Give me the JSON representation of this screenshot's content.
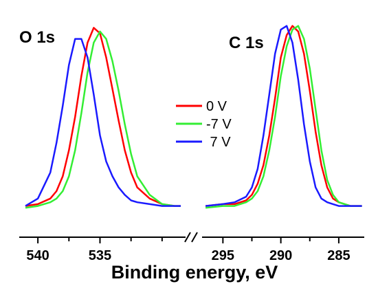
{
  "chart_data": {
    "type": "line",
    "xlabel": "Binding energy, eV",
    "axis_direction": "reversed",
    "axis_break": true,
    "panels": [
      {
        "label": "O 1s",
        "xlim": [
          541.5,
          528
        ],
        "ticks": [
          540,
          535
        ],
        "series": [
          {
            "name": "0 V",
            "color": "#ff0000",
            "x": [
              541.0,
              540.0,
              539.0,
              538.5,
              538.0,
              537.5,
              537.0,
              536.5,
              536.0,
              535.5,
              535.0,
              534.5,
              534.0,
              533.5,
              533.0,
              532.5,
              532.0,
              531.0,
              530.0,
              529.0,
              528.5
            ],
            "y": [
              0.02,
              0.03,
              0.06,
              0.1,
              0.18,
              0.32,
              0.5,
              0.72,
              0.9,
              0.98,
              0.95,
              0.82,
              0.65,
              0.48,
              0.32,
              0.2,
              0.12,
              0.06,
              0.03,
              0.02,
              0.02
            ]
          },
          {
            "name": "-7 V",
            "color": "#33ee33",
            "x": [
              541.0,
              540.0,
              539.0,
              538.5,
              538.0,
              537.5,
              537.0,
              536.5,
              536.0,
              535.5,
              535.0,
              534.5,
              534.0,
              533.5,
              533.0,
              532.5,
              532.0,
              531.0,
              530.0,
              529.0,
              528.5
            ],
            "y": [
              0.01,
              0.02,
              0.04,
              0.06,
              0.1,
              0.18,
              0.32,
              0.52,
              0.74,
              0.9,
              0.96,
              0.92,
              0.8,
              0.64,
              0.46,
              0.3,
              0.18,
              0.08,
              0.03,
              0.02,
              0.02
            ]
          },
          {
            "name": " 7 V",
            "color": "#1a1aff",
            "x": [
              541.0,
              540.0,
              539.0,
              538.5,
              538.0,
              537.5,
              537.0,
              536.5,
              536.0,
              535.5,
              535.0,
              534.5,
              534.0,
              533.5,
              533.0,
              532.5,
              532.0,
              531.0,
              530.0,
              529.0,
              528.5
            ],
            "y": [
              0.02,
              0.06,
              0.2,
              0.36,
              0.56,
              0.78,
              0.92,
              0.92,
              0.82,
              0.62,
              0.4,
              0.26,
              0.18,
              0.12,
              0.08,
              0.05,
              0.04,
              0.03,
              0.02,
              0.02,
              0.02
            ]
          }
        ]
      },
      {
        "label": "C 1s",
        "xlim": [
          296.8,
          282.8
        ],
        "ticks": [
          295,
          290,
          285
        ],
        "series": [
          {
            "name": "0 V",
            "color": "#ff0000",
            "x": [
              296.5,
              295.0,
              294.0,
              293.0,
              292.5,
              292.0,
              291.5,
              291.0,
              290.5,
              290.0,
              289.5,
              289.0,
              288.5,
              288.0,
              287.5,
              287.0,
              286.5,
              286.0,
              285.5,
              285.0,
              284.0,
              283.0
            ],
            "y": [
              0.02,
              0.03,
              0.03,
              0.05,
              0.08,
              0.14,
              0.24,
              0.4,
              0.6,
              0.82,
              0.94,
              0.99,
              0.96,
              0.84,
              0.64,
              0.42,
              0.24,
              0.12,
              0.06,
              0.04,
              0.02,
              0.02
            ]
          },
          {
            "name": "-7 V",
            "color": "#33ee33",
            "x": [
              296.5,
              295.0,
              294.0,
              293.0,
              292.5,
              292.0,
              291.5,
              291.0,
              290.5,
              290.0,
              289.5,
              289.0,
              288.5,
              288.0,
              287.5,
              287.0,
              286.5,
              286.0,
              285.5,
              285.0,
              284.0,
              283.0
            ],
            "y": [
              0.01,
              0.02,
              0.02,
              0.04,
              0.06,
              0.1,
              0.18,
              0.32,
              0.5,
              0.72,
              0.88,
              0.97,
              0.99,
              0.92,
              0.76,
              0.54,
              0.32,
              0.16,
              0.08,
              0.04,
              0.02,
              0.02
            ]
          },
          {
            "name": " 7 V",
            "color": "#1a1aff",
            "x": [
              296.5,
              295.0,
              294.0,
              293.0,
              292.5,
              292.0,
              291.5,
              291.0,
              290.5,
              290.0,
              289.5,
              289.0,
              288.5,
              288.0,
              287.5,
              287.0,
              286.5,
              286.0,
              285.5,
              285.0,
              284.0,
              283.0
            ],
            "y": [
              0.02,
              0.03,
              0.04,
              0.07,
              0.12,
              0.22,
              0.4,
              0.62,
              0.84,
              0.97,
              0.99,
              0.9,
              0.7,
              0.46,
              0.26,
              0.12,
              0.06,
              0.04,
              0.03,
              0.02,
              0.02,
              0.02
            ]
          }
        ]
      }
    ],
    "legend": {
      "placement": "center",
      "entries": [
        "0 V",
        "-7 V",
        " 7 V"
      ]
    },
    "grid": false
  }
}
